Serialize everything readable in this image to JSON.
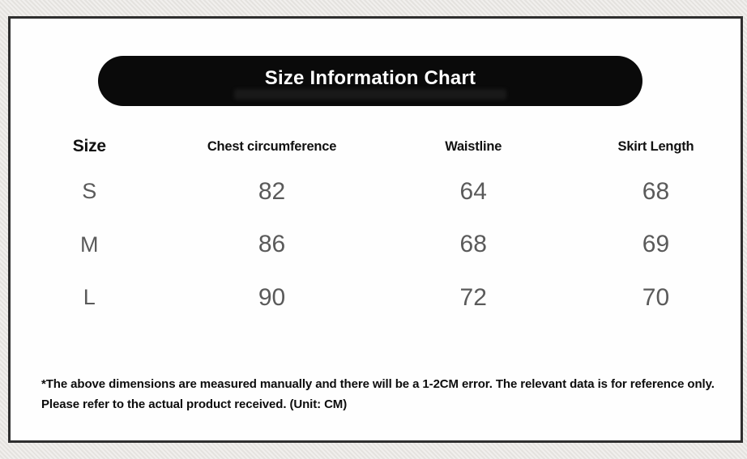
{
  "page": {
    "background_color": "#e9e7e3",
    "card_background": "#fefefe",
    "card_border_color": "#2e2e2e"
  },
  "banner": {
    "title": "Size Information Chart",
    "background_color": "#0a0a0a",
    "text_color": "#ffffff"
  },
  "chart_data": {
    "type": "table",
    "title": "Size Information Chart",
    "columns": [
      "Size",
      "Chest circumference",
      "Waistline",
      "Skirt Length"
    ],
    "rows": [
      [
        "S",
        "82",
        "64",
        "68"
      ],
      [
        "M",
        "86",
        "68",
        "69"
      ],
      [
        "L",
        "90",
        "72",
        "70"
      ]
    ],
    "unit": "CM",
    "value_text_color": "#5a5a5a",
    "header_text_color": "#111111"
  },
  "footnote": {
    "text": "*The above dimensions are measured manually and there will be a 1-2CM error. The relevant data is for reference only. Please refer to the actual product received. (Unit: CM)"
  }
}
